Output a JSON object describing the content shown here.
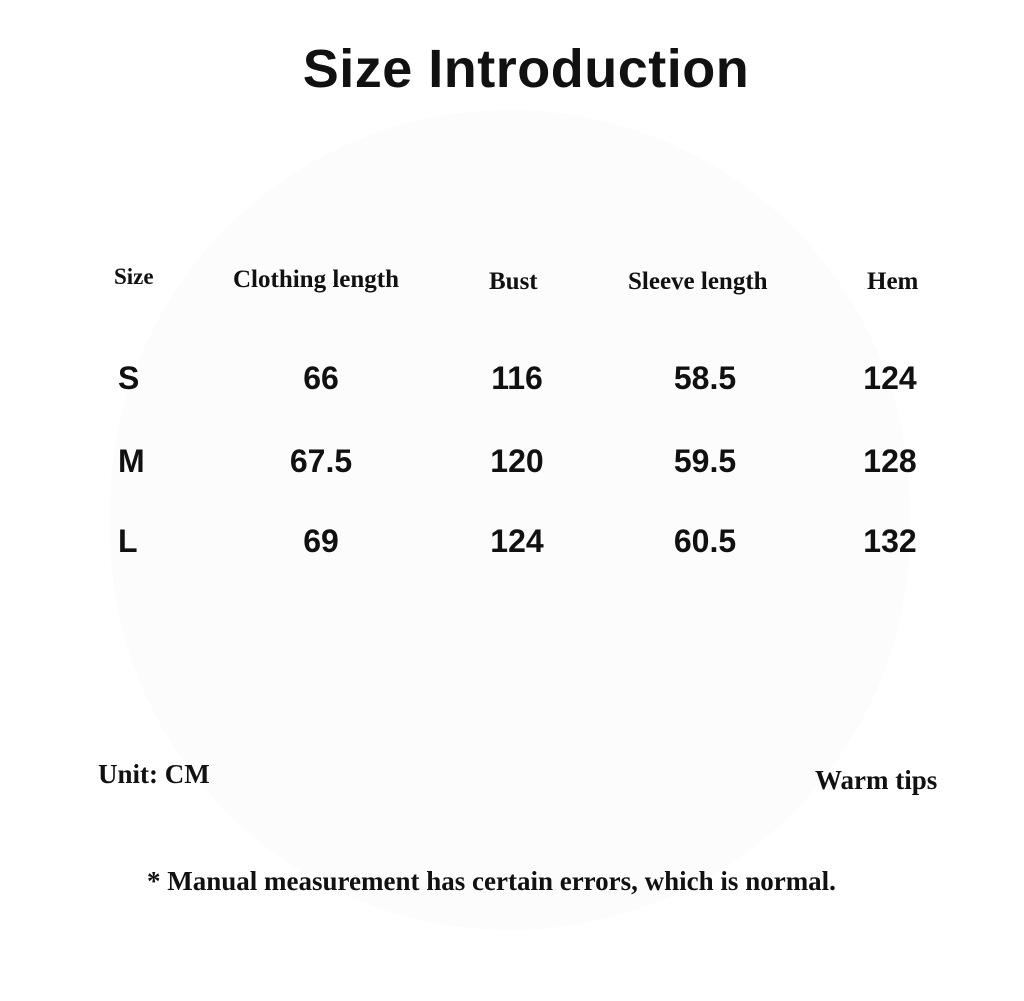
{
  "title": "Size Introduction",
  "headers": [
    "Size",
    "Clothing length",
    "Bust",
    "Sleeve length",
    "Hem"
  ],
  "rows": [
    [
      "S",
      "66",
      "116",
      "58.5",
      "124"
    ],
    [
      "M",
      "67.5",
      "120",
      "59.5",
      "128"
    ],
    [
      "L",
      "69",
      "124",
      "60.5",
      "132"
    ]
  ],
  "unit": "Unit: CM",
  "warm_tips": "Warm tips",
  "footnote": "* Manual measurement has certain errors, which is normal."
}
